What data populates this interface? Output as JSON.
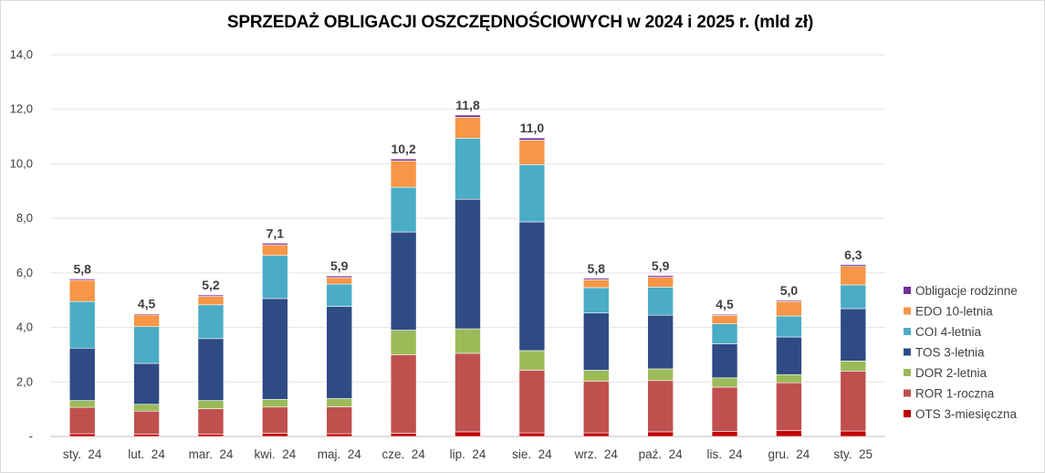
{
  "chart_data": {
    "type": "bar",
    "stacked": true,
    "title": "SPRZEDAŻ OBLIGACJI OSZCZĘDNOŚCIOWYCH w 2024 i 2025 r. (mld zł)",
    "xlabel": "",
    "ylabel": "",
    "ylim": [
      0,
      14
    ],
    "yticks": [
      "-",
      "2,0",
      "4,0",
      "6,0",
      "8,0",
      "10,0",
      "12,0",
      "14,0"
    ],
    "grid": true,
    "legend_position": "right",
    "categories": [
      "sty.  24",
      "lut.  24",
      "mar.  24",
      "kwi.  24",
      "maj.  24",
      "cze.  24",
      "lip.  24",
      "sie.  24",
      "wrz.  24",
      "paź.  24",
      "lis.  24",
      "gru.  24",
      "sty.  25"
    ],
    "totals": [
      "5,8",
      "4,5",
      "5,2",
      "7,1",
      "5,9",
      "10,2",
      "11,8",
      "11,0",
      "5,8",
      "5,9",
      "4,5",
      "5,0",
      "6,3"
    ],
    "series": [
      {
        "name": "OTS 3-miesięczna",
        "color": "#c00000",
        "values": [
          0.1,
          0.08,
          0.08,
          0.12,
          0.1,
          0.12,
          0.17,
          0.13,
          0.13,
          0.17,
          0.18,
          0.22,
          0.2
        ]
      },
      {
        "name": "ROR 1-roczna",
        "color": "#c0504d",
        "values": [
          0.97,
          0.85,
          0.94,
          0.96,
          0.99,
          2.88,
          2.88,
          2.3,
          1.9,
          1.88,
          1.63,
          1.75,
          2.2
        ]
      },
      {
        "name": "DOR 2-letnia",
        "color": "#9bbb59",
        "values": [
          0.25,
          0.25,
          0.3,
          0.28,
          0.3,
          0.9,
          0.9,
          0.72,
          0.4,
          0.43,
          0.34,
          0.3,
          0.37
        ]
      },
      {
        "name": "TOS 3-letnia",
        "color": "#2f4b85",
        "values": [
          1.92,
          1.5,
          2.27,
          3.7,
          3.38,
          3.6,
          4.75,
          4.72,
          2.1,
          1.97,
          1.25,
          1.38,
          1.92
        ]
      },
      {
        "name": "COI 4-letnia",
        "color": "#4bacc6",
        "values": [
          1.71,
          1.35,
          1.24,
          1.58,
          0.82,
          1.64,
          2.24,
          2.1,
          0.93,
          1.03,
          0.73,
          0.77,
          0.87
        ]
      },
      {
        "name": "EDO 10-letnia",
        "color": "#f79646",
        "values": [
          0.78,
          0.43,
          0.31,
          0.39,
          0.24,
          0.97,
          0.77,
          0.9,
          0.29,
          0.36,
          0.31,
          0.53,
          0.68
        ]
      },
      {
        "name": "Obligacje rodzinne",
        "color": "#7030a0",
        "values": [
          0.05,
          0.04,
          0.05,
          0.06,
          0.06,
          0.07,
          0.08,
          0.08,
          0.05,
          0.06,
          0.04,
          0.04,
          0.06
        ]
      }
    ]
  }
}
